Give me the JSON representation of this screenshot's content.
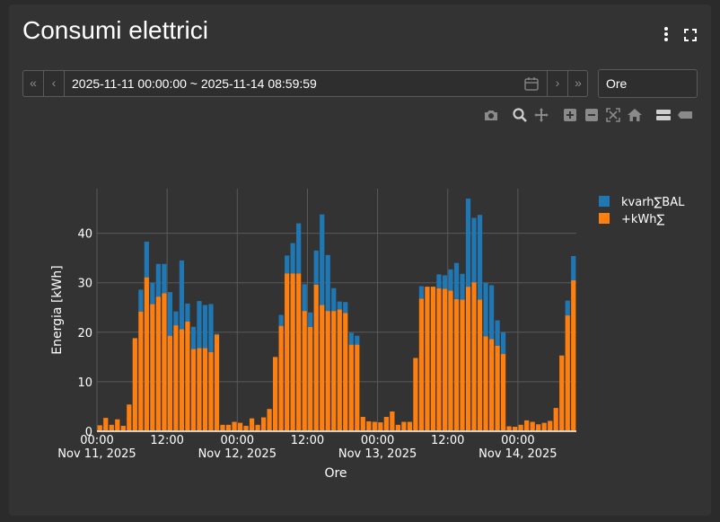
{
  "header": {
    "title": "Consumi elettrici"
  },
  "toolbar": {
    "first_label": "«",
    "prev_label": "‹",
    "next_label": "›",
    "last_label": "»",
    "date_range": "2025-11-11 00:00:00 ~ 2025-11-14 08:59:59",
    "period_value": "Ore",
    "icons": [
      "more-vert-icon",
      "fullscreen-icon",
      "calendar-icon",
      "camera-icon",
      "zoom-icon",
      "pan-icon",
      "zoom-in-icon",
      "zoom-out-icon",
      "autoscale-icon",
      "home-icon",
      "spike-lines-icon",
      "hover-compare-icon"
    ]
  },
  "colors": {
    "kvarh": "#1f77b4",
    "kwh": "#ff7f0e",
    "text": "#ffffff",
    "grid": "#5a5a5a"
  },
  "chart_data": {
    "type": "bar",
    "stacked": true,
    "xlabel": "Ore",
    "ylabel": "Energia [kWh]",
    "ylim": [
      0,
      49
    ],
    "yticks": [
      0,
      10,
      20,
      30,
      40
    ],
    "x_start": "2025-11-11 00:00",
    "x_step": "1 hour",
    "xticks": [
      {
        "hour": 0,
        "time": "00:00",
        "date": "Nov 11, 2025"
      },
      {
        "hour": 12,
        "time": "12:00",
        "date": ""
      },
      {
        "hour": 24,
        "time": "00:00",
        "date": "Nov 12, 2025"
      },
      {
        "hour": 36,
        "time": "12:00",
        "date": ""
      },
      {
        "hour": 48,
        "time": "00:00",
        "date": "Nov 13, 2025"
      },
      {
        "hour": 60,
        "time": "12:00",
        "date": ""
      },
      {
        "hour": 72,
        "time": "00:00",
        "date": "Nov 14, 2025"
      }
    ],
    "legend_position": "top-right",
    "series": [
      {
        "name": "+kWh∑",
        "color": "#ff7f0e",
        "values": [
          1.2,
          2.7,
          1.3,
          2.4,
          1.1,
          5.4,
          18.8,
          24.2,
          31.1,
          25.7,
          27.2,
          27.9,
          19.3,
          21.4,
          20.6,
          22.2,
          16.6,
          16.8,
          16.8,
          16.0,
          19.5,
          1.3,
          1.3,
          1.9,
          1.7,
          1.1,
          2.6,
          1.3,
          2.8,
          4.5,
          15.0,
          21.3,
          31.9,
          31.9,
          31.9,
          24.3,
          21.1,
          29.6,
          25.5,
          24.3,
          24.3,
          24.6,
          23.9,
          17.5,
          17.5,
          2.9,
          2.0,
          1.9,
          1.8,
          2.9,
          4.0,
          1.3,
          1.9,
          1.9,
          14.8,
          26.8,
          29.2,
          29.2,
          28.9,
          28.8,
          28.4,
          26.7,
          26.6,
          29.2,
          30.1,
          26.6,
          19.2,
          18.6,
          17.3,
          15.6,
          1.0,
          0.9,
          1.3,
          2.2,
          1.9,
          1.4,
          1.7,
          2.1,
          4.7,
          15.3,
          23.4,
          30.5
        ]
      },
      {
        "name": "kvarh∑BAL",
        "color": "#1f77b4",
        "values": [
          0,
          0,
          0,
          0,
          0,
          0,
          0,
          4.4,
          7.2,
          4.3,
          6.6,
          5.9,
          8.8,
          2.8,
          13.9,
          3.6,
          4.5,
          9.5,
          8.7,
          9.7,
          0.2,
          0,
          0,
          0,
          0,
          0,
          0,
          0,
          0,
          0,
          0,
          2.2,
          3.6,
          6.1,
          10.1,
          5.4,
          2.9,
          6.9,
          18.3,
          11.3,
          4.6,
          1.6,
          2.2,
          2.4,
          1.8,
          0,
          0,
          0,
          0,
          0,
          0,
          0,
          0,
          0,
          0,
          2.5,
          0,
          0,
          2.8,
          2.7,
          4.3,
          7.3,
          5.2,
          17.8,
          13.0,
          17.1,
          10.8,
          10.9,
          5.1,
          4.4,
          0,
          0,
          0,
          0,
          0,
          0,
          0,
          0,
          0,
          0,
          3.0,
          4.9
        ]
      }
    ]
  }
}
